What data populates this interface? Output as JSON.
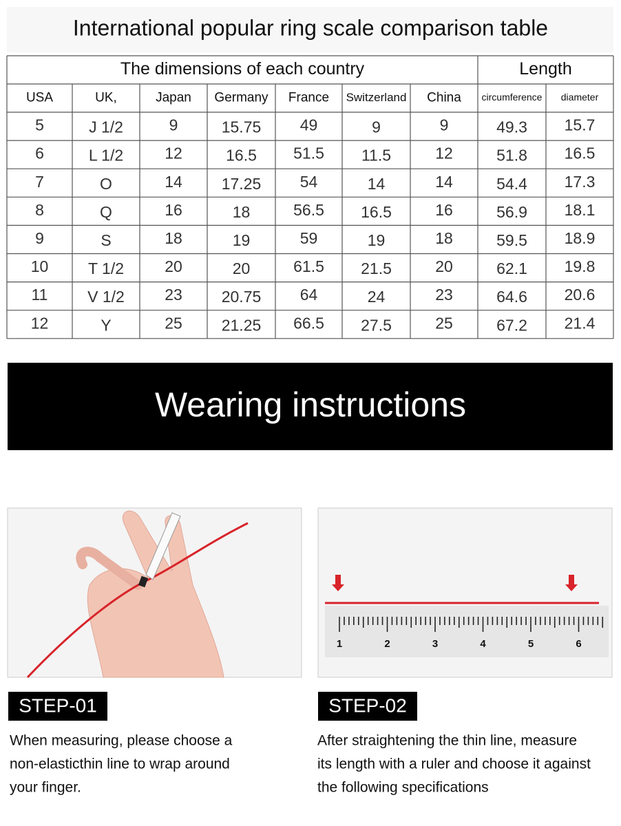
{
  "header": {
    "title": "International popular ring scale comparison table"
  },
  "table": {
    "group_headers": [
      "The dimensions of each country",
      "Length"
    ],
    "columns": [
      "USA",
      "UK,",
      "Japan",
      "Germany",
      "France",
      "Switzerland",
      "China",
      "circumference",
      "diameter"
    ],
    "rows": [
      [
        "5",
        "J 1/2",
        "9",
        "15.75",
        "49",
        "9",
        "9",
        "49.3",
        "15.7"
      ],
      [
        "6",
        "L 1/2",
        "12",
        "16.5",
        "51.5",
        "11.5",
        "12",
        "51.8",
        "16.5"
      ],
      [
        "7",
        "O",
        "14",
        "17.25",
        "54",
        "14",
        "14",
        "54.4",
        "17.3"
      ],
      [
        "8",
        "Q",
        "16",
        "18",
        "56.5",
        "16.5",
        "16",
        "56.9",
        "18.1"
      ],
      [
        "9",
        "S",
        "18",
        "19",
        "59",
        "19",
        "18",
        "59.5",
        "18.9"
      ],
      [
        "10",
        "T 1/2",
        "20",
        "20",
        "61.5",
        "21.5",
        "20",
        "62.1",
        "19.8"
      ],
      [
        "11",
        "V 1/2",
        "23",
        "20.75",
        "64",
        "24",
        "23",
        "64.6",
        "20.6"
      ],
      [
        "12",
        "Y",
        "25",
        "21.25",
        "66.5",
        "27.5",
        "25",
        "67.2",
        "21.4"
      ]
    ]
  },
  "banner": {
    "title": "Wearing instructions"
  },
  "steps": [
    {
      "label": "STEP-01",
      "lines": [
        "When measuring, please choose a",
        "non-elasticthin line to wrap around",
        "your finger."
      ]
    },
    {
      "label": "STEP-02",
      "lines": [
        "After straightening the thin line, measure",
        "its length with a ruler and choose it against",
        "the following specifications"
      ],
      "ruler_labels": [
        "1",
        "2",
        "3",
        "4",
        "5",
        "6"
      ]
    }
  ]
}
